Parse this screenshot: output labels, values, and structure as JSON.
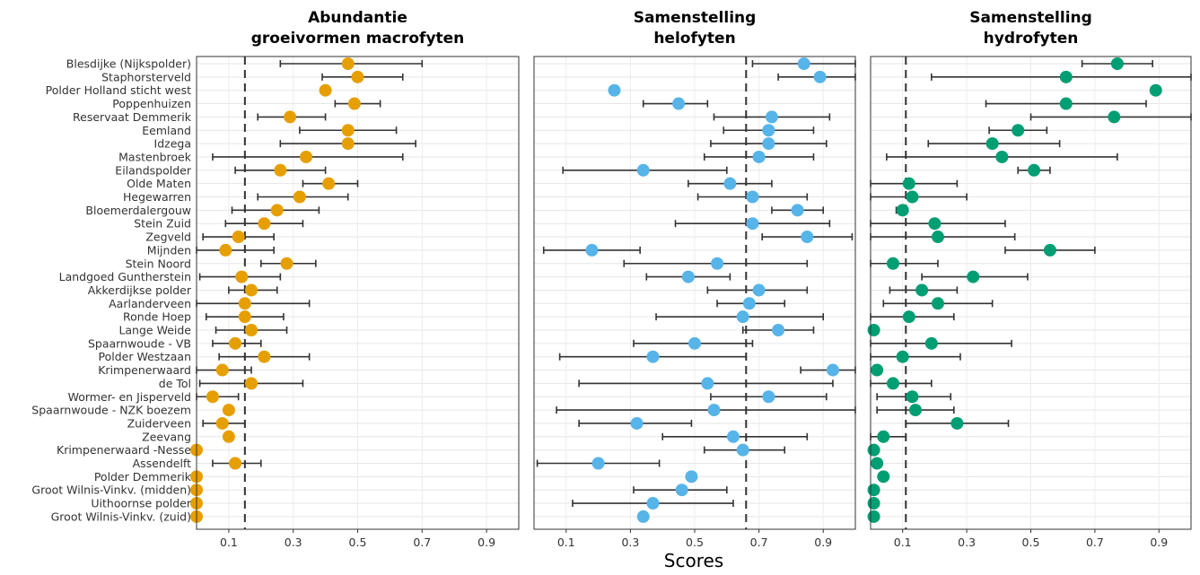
{
  "chart_data": {
    "type": "scatter",
    "xlabel": "Scores",
    "xlim": [
      0,
      1
    ],
    "x_ticks": [
      0.1,
      0.3,
      0.5,
      0.7,
      0.9
    ],
    "x_tick_labels": [
      "0.1",
      "0.3",
      "0.5",
      "0.7",
      "0.9"
    ],
    "grid": true,
    "categories": [
      "Blesdijke (Nijkspolder)",
      "Staphorsterveld",
      "Polder Holland sticht west",
      "Poppenhuizen",
      "Reservaat Demmerik",
      "Eemland",
      "Idzega",
      "Mastenbroek",
      "Eilandspolder",
      "Olde Maten",
      "Hegewarren",
      "Bloemerdalergouw",
      "Stein Zuid",
      "Zegveld",
      "Mijnden",
      "Stein Noord",
      "Landgoed Guntherstein",
      "Akkerdijkse polder",
      "Aarlanderveen",
      "Ronde Hoep",
      "Lange Weide",
      "Spaarnwoude - VB",
      "Polder Westzaan",
      "Krimpenerwaard",
      "de Tol",
      "Wormer- en Jisperveld",
      "Spaarnwoude - NZK boezem",
      "Zuiderveen",
      "Zeevang",
      "Krimpenerwaard -Nesse",
      "Assendelft",
      "Polder Demmerik",
      "Groot Wilnis-Vinkv. (midden)",
      "Uithoornse polder",
      "Groot Wilnis-Vinkv. (zuid)"
    ],
    "panels": [
      {
        "title_lines": [
          "Abundantie",
          "groeivormen macrofyten"
        ],
        "color": "#E69F00",
        "reference": 0.15,
        "values": [
          0.47,
          0.5,
          0.4,
          0.49,
          0.29,
          0.47,
          0.47,
          0.34,
          0.26,
          0.41,
          0.32,
          0.25,
          0.21,
          0.13,
          0.09,
          0.28,
          0.14,
          0.17,
          0.15,
          0.15,
          0.17,
          0.12,
          0.21,
          0.08,
          0.17,
          0.05,
          0.1,
          0.08,
          0.1,
          0.0,
          0.12,
          0.0,
          0.0,
          0.0,
          0.0
        ],
        "lower": [
          0.26,
          0.39,
          null,
          0.43,
          0.19,
          0.32,
          0.26,
          0.05,
          0.12,
          0.33,
          0.19,
          0.11,
          0.09,
          0.02,
          0.0,
          0.2,
          0.01,
          0.1,
          0.0,
          0.03,
          0.06,
          0.05,
          0.07,
          0.0,
          0.01,
          0.0,
          null,
          0.02,
          null,
          null,
          0.05,
          null,
          null,
          null,
          null
        ],
        "upper": [
          0.7,
          0.64,
          null,
          0.57,
          0.4,
          0.62,
          0.68,
          0.64,
          0.4,
          0.5,
          0.47,
          0.38,
          0.33,
          0.24,
          0.24,
          0.37,
          0.26,
          0.25,
          0.35,
          0.27,
          0.28,
          0.2,
          0.35,
          0.17,
          0.33,
          0.13,
          null,
          0.15,
          null,
          null,
          0.2,
          null,
          null,
          null,
          null
        ]
      },
      {
        "title_lines": [
          "Samenstelling",
          "helofyten"
        ],
        "color": "#56B4E9",
        "reference": 0.66,
        "values": [
          0.84,
          0.89,
          0.25,
          0.45,
          0.74,
          0.73,
          0.73,
          0.7,
          0.34,
          0.61,
          0.68,
          0.82,
          0.68,
          0.85,
          0.18,
          0.57,
          0.48,
          0.7,
          0.67,
          0.65,
          0.76,
          0.5,
          0.37,
          0.93,
          0.54,
          0.73,
          0.56,
          0.32,
          0.62,
          0.65,
          0.2,
          0.49,
          0.46,
          0.37,
          0.34
        ],
        "lower": [
          0.68,
          0.76,
          null,
          0.34,
          0.56,
          0.59,
          0.55,
          0.53,
          0.09,
          0.48,
          0.51,
          0.74,
          0.44,
          0.71,
          0.03,
          0.28,
          0.35,
          0.54,
          0.57,
          0.38,
          0.65,
          0.31,
          0.08,
          0.83,
          0.14,
          0.55,
          0.07,
          0.14,
          0.4,
          0.53,
          0.01,
          null,
          0.31,
          0.12,
          null
        ],
        "upper": [
          1.0,
          1.0,
          null,
          0.54,
          0.92,
          0.87,
          0.91,
          0.87,
          0.6,
          0.74,
          0.85,
          0.9,
          0.92,
          0.99,
          0.33,
          0.85,
          0.61,
          0.85,
          0.78,
          0.9,
          0.87,
          0.68,
          0.66,
          1.0,
          0.93,
          0.91,
          1.0,
          0.49,
          0.85,
          0.78,
          0.39,
          null,
          0.6,
          0.62,
          null
        ]
      },
      {
        "title_lines": [
          "Samenstelling",
          "hydrofyten"
        ],
        "color": "#009E73",
        "reference": 0.11,
        "values": [
          0.77,
          0.61,
          0.89,
          0.61,
          0.76,
          0.46,
          0.38,
          0.41,
          0.51,
          0.12,
          0.13,
          0.1,
          0.2,
          0.21,
          0.56,
          0.07,
          0.32,
          0.16,
          0.21,
          0.12,
          0.01,
          0.19,
          0.1,
          0.02,
          0.07,
          0.13,
          0.14,
          0.27,
          0.04,
          0.01,
          0.02,
          0.04,
          0.01,
          0.01,
          0.01
        ],
        "lower": [
          0.66,
          0.19,
          null,
          0.36,
          0.5,
          0.37,
          0.18,
          0.05,
          0.46,
          0.0,
          0.0,
          0.08,
          0.0,
          0.0,
          0.42,
          0.0,
          0.16,
          0.06,
          0.04,
          0.0,
          null,
          0.0,
          0.0,
          null,
          0.0,
          0.02,
          0.02,
          0.11,
          0.0,
          null,
          null,
          null,
          null,
          null,
          null
        ],
        "upper": [
          0.88,
          1.0,
          null,
          0.86,
          1.0,
          0.55,
          0.59,
          0.77,
          0.56,
          0.27,
          0.3,
          0.11,
          0.42,
          0.45,
          0.7,
          0.21,
          0.49,
          0.27,
          0.38,
          0.26,
          null,
          0.44,
          0.28,
          null,
          0.19,
          0.25,
          0.26,
          0.43,
          0.11,
          null,
          null,
          null,
          null,
          null,
          null
        ]
      }
    ]
  }
}
